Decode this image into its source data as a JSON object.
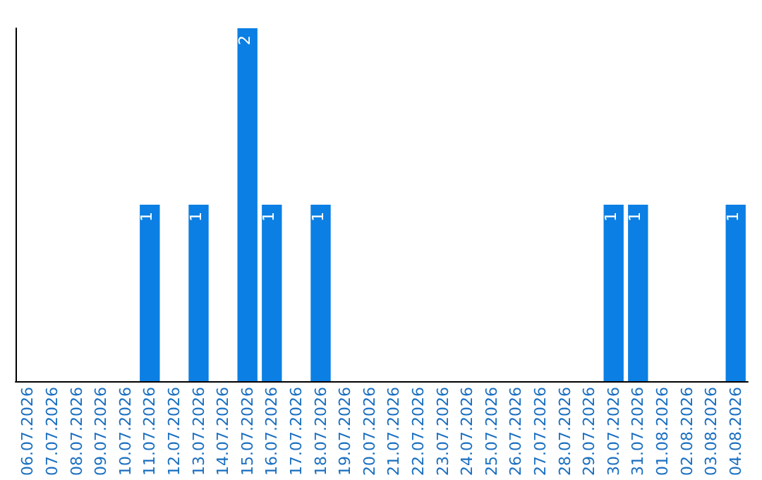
{
  "chart_data": {
    "type": "bar",
    "categories": [
      "06.07.2026",
      "07.07.2026",
      "08.07.2026",
      "09.07.2026",
      "10.07.2026",
      "11.07.2026",
      "12.07.2026",
      "13.07.2026",
      "14.07.2026",
      "15.07.2026",
      "16.07.2026",
      "17.07.2026",
      "18.07.2026",
      "19.07.2026",
      "20.07.2026",
      "21.07.2026",
      "22.07.2026",
      "23.07.2026",
      "24.07.2026",
      "25.07.2026",
      "26.07.2026",
      "27.07.2026",
      "28.07.2026",
      "29.07.2026",
      "30.07.2026",
      "31.07.2026",
      "01.08.2026",
      "02.08.2026",
      "03.08.2026",
      "04.08.2026"
    ],
    "values": [
      null,
      null,
      null,
      null,
      null,
      1,
      null,
      1,
      null,
      2,
      1,
      null,
      1,
      null,
      null,
      null,
      null,
      null,
      null,
      null,
      null,
      null,
      null,
      null,
      1,
      1,
      null,
      null,
      null,
      1
    ],
    "data_labels": true,
    "color": "#0b7fe3",
    "tick_labels": "x",
    "grid": false
  }
}
